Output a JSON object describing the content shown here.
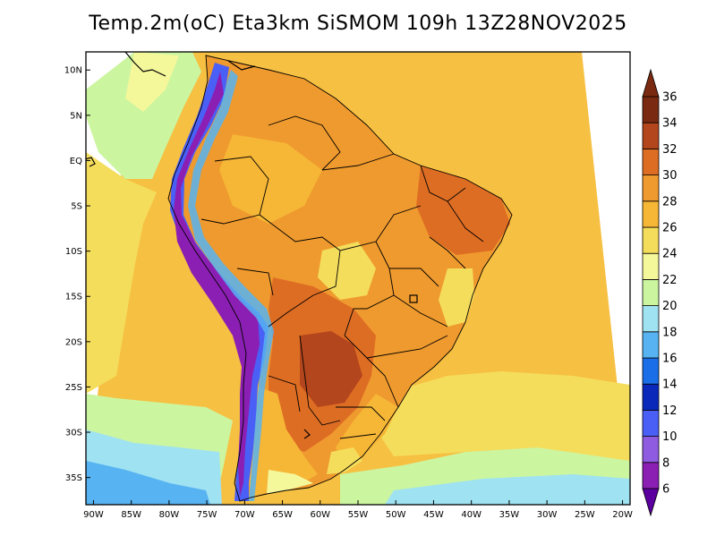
{
  "title": "Temp.2m(oC) Eta3km SiSMOM 109h 13Z28NOV2025",
  "map": {
    "variable": "2 m temperature",
    "units": "oC",
    "lat_range": [
      -38,
      12
    ],
    "lon_range": [
      -91,
      -19
    ],
    "lat_ticks": [
      {
        "value": 10,
        "label": "10N"
      },
      {
        "value": 5,
        "label": "5N"
      },
      {
        "value": 0,
        "label": "EQ"
      },
      {
        "value": -5,
        "label": "5S"
      },
      {
        "value": -10,
        "label": "10S"
      },
      {
        "value": -15,
        "label": "15S"
      },
      {
        "value": -20,
        "label": "20S"
      },
      {
        "value": -25,
        "label": "25S"
      },
      {
        "value": -30,
        "label": "30S"
      },
      {
        "value": -35,
        "label": "35S"
      }
    ],
    "lon_ticks": [
      {
        "value": -90,
        "label": "90W"
      },
      {
        "value": -85,
        "label": "85W"
      },
      {
        "value": -80,
        "label": "80W"
      },
      {
        "value": -75,
        "label": "75W"
      },
      {
        "value": -70,
        "label": "70W"
      },
      {
        "value": -65,
        "label": "65W"
      },
      {
        "value": -60,
        "label": "60W"
      },
      {
        "value": -55,
        "label": "55W"
      },
      {
        "value": -50,
        "label": "50W"
      },
      {
        "value": -45,
        "label": "45W"
      },
      {
        "value": -40,
        "label": "40W"
      },
      {
        "value": -35,
        "label": "35W"
      },
      {
        "value": -30,
        "label": "30W"
      },
      {
        "value": -25,
        "label": "25W"
      },
      {
        "value": -20,
        "label": "20W"
      }
    ]
  },
  "colorbar": {
    "levels": [
      {
        "label": "6",
        "color": "#5b009f"
      },
      {
        "label": "8",
        "color": "#8c1fb3"
      },
      {
        "label": "10",
        "color": "#8f5be0"
      },
      {
        "label": "12",
        "color": "#4a5ff5"
      },
      {
        "label": "14",
        "color": "#0a28b9"
      },
      {
        "label": "16",
        "color": "#1a6ee8"
      },
      {
        "label": "18",
        "color": "#57b3f1"
      },
      {
        "label": "20",
        "color": "#9fe2f2"
      },
      {
        "label": "22",
        "color": "#ccf5a0"
      },
      {
        "label": "24",
        "color": "#f5f79b"
      },
      {
        "label": "26",
        "color": "#f5dd5c"
      },
      {
        "label": "28",
        "color": "#f6b636"
      },
      {
        "label": "30",
        "color": "#ef9a2e"
      },
      {
        "label": "32",
        "color": "#de6d24"
      },
      {
        "label": "34",
        "color": "#b3461c"
      },
      {
        "label": "36",
        "color": "#7a2a10"
      }
    ]
  }
}
